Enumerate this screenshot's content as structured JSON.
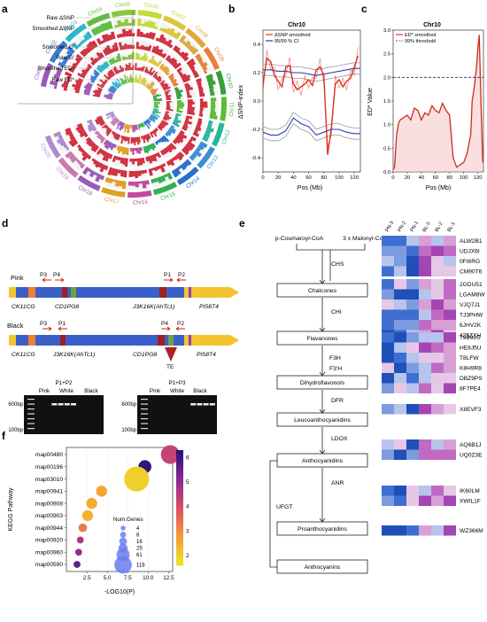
{
  "panel_letters": {
    "a": "a",
    "b": "b",
    "c": "c",
    "d": "d",
    "e": "e",
    "f": "f"
  },
  "panel_a": {
    "track_labels": [
      "Raw ΔSNP",
      "Smoothed ΔSNP",
      "Smoothed G'",
      "Raw G'",
      "Smoothed ED*",
      "Raw ED*"
    ],
    "chromosomes": [
      "Chr01",
      "Chr02",
      "Chr03",
      "Chr04",
      "Chr05",
      "Chr06",
      "Chr07",
      "Chr08",
      "Chr09",
      "Chr10",
      "Chr11",
      "Chr12",
      "Chr13",
      "Chr14",
      "Chr15",
      "Chr16",
      "Chr17",
      "Chr18",
      "Chr19",
      "Chr20"
    ],
    "chr_colors": [
      "#9b59b6",
      "#3a7bd5",
      "#2ab7ca",
      "#5fbf3f",
      "#8cc63f",
      "#c5d93a",
      "#d9c83a",
      "#e0a83a",
      "#e8803a",
      "#37a03a",
      "#5dbb3a",
      "#2bb5a0",
      "#3a8fd5",
      "#2a6fc8",
      "#33b050",
      "#c04a9a",
      "#e0a020",
      "#9a5ab6",
      "#c87ab0",
      "#b08ad0"
    ]
  },
  "panel_b": {
    "chart_data": {
      "type": "line",
      "title": "Chr10",
      "xlabel": "Pos (Mb)",
      "ylabel": "ΔSNP-index",
      "xlim": [
        0,
        128
      ],
      "ylim": [
        -0.5,
        0.5
      ],
      "xticks": [
        "0",
        "20",
        "40",
        "60",
        "80",
        "100",
        "120"
      ],
      "yticks": [
        "-0.4",
        "-0.2",
        "0.0",
        "0.2",
        "0.4"
      ],
      "legend": [
        "ΔSNP smoothed",
        "95/99 % CI"
      ],
      "series": [
        {
          "name": "ΔSNP smoothed",
          "x": [
            0,
            5,
            10,
            15,
            20,
            25,
            30,
            35,
            40,
            45,
            50,
            55,
            60,
            65,
            70,
            75,
            80,
            85,
            90,
            95,
            100,
            105,
            110,
            115,
            120,
            125
          ],
          "values": [
            0.12,
            0.3,
            0.28,
            0.18,
            0.14,
            0.1,
            0.24,
            0.25,
            0.12,
            0.08,
            0.1,
            0.12,
            0.15,
            0.11,
            0.22,
            0.24,
            0.18,
            -0.38,
            -0.18,
            0.12,
            0.15,
            0.1,
            0.14,
            0.16,
            0.24,
            0.32
          ]
        },
        {
          "name": "95/99 % CI",
          "x": [
            0,
            10,
            20,
            30,
            40,
            50,
            60,
            70,
            80,
            90,
            100,
            110,
            120,
            128
          ],
          "values": [
            0.22,
            0.22,
            0.21,
            0.21,
            0.2,
            0.2,
            0.19,
            0.18,
            0.19,
            0.2,
            0.21,
            0.22,
            0.23,
            0.23
          ]
        },
        {
          "name": "95/99 % CI lower",
          "x": [
            0,
            10,
            20,
            30,
            40,
            50,
            60,
            70,
            80,
            90,
            100,
            110,
            120,
            128
          ],
          "values": [
            -0.22,
            -0.24,
            -0.24,
            -0.21,
            -0.12,
            -0.16,
            -0.18,
            -0.24,
            -0.22,
            -0.2,
            -0.2,
            -0.22,
            -0.23,
            -0.23
          ]
        }
      ]
    }
  },
  "panel_c": {
    "chart_data": {
      "type": "line",
      "title": "Chr10",
      "xlabel": "Pos (Mb)",
      "ylabel": "ED* Value",
      "xlim": [
        0,
        128
      ],
      "ylim": [
        0,
        3
      ],
      "xticks": [
        "0",
        "20",
        "40",
        "60",
        "80",
        "100",
        "120"
      ],
      "yticks": [
        "0.0",
        "0.5",
        "1.0",
        "1.5",
        "2.0",
        "2.5",
        "3.0"
      ],
      "legend": [
        "ED* smoothed",
        "99% threshold"
      ],
      "threshold": 2.0,
      "series": [
        {
          "name": "ED* smoothed",
          "x": [
            0,
            2,
            5,
            8,
            10,
            15,
            20,
            25,
            30,
            35,
            40,
            45,
            50,
            55,
            60,
            65,
            70,
            75,
            80,
            85,
            90,
            95,
            100,
            105,
            110,
            112,
            115,
            118,
            120,
            122,
            125,
            127
          ],
          "values": [
            0.05,
            0.1,
            0.8,
            1.05,
            1.1,
            1.15,
            1.2,
            1.1,
            1.35,
            1.3,
            1.1,
            1.25,
            1.2,
            1.4,
            1.3,
            1.25,
            1.45,
            1.3,
            1.2,
            0.3,
            0.1,
            0.15,
            0.2,
            0.4,
            0.8,
            1.5,
            1.8,
            2.2,
            2.6,
            2.9,
            1.2,
            0.2
          ]
        }
      ]
    }
  },
  "panel_d": {
    "pink_label": "Pink",
    "black_label": "Black",
    "pink_genes": [
      "CK11CG",
      "CD1PG8",
      "J3K16K(AhTc1)",
      "PI58T4"
    ],
    "black_genes": [
      "CK11CG",
      "J3K16K(AhTc1)",
      "CD1PG8",
      "PI58T4"
    ],
    "pink_primers": [
      "P3",
      "P4",
      "P1",
      "P2"
    ],
    "black_primers": [
      "P3",
      "P1",
      "P4",
      "P2"
    ],
    "te_label": "TE",
    "gel1_title": "P1+P2",
    "gel2_title": "P1+P3",
    "gel_lanes": [
      "Pink",
      "White",
      "Black"
    ],
    "ladder_labels": [
      "600bp",
      "100bp"
    ]
  },
  "panel_e": {
    "pathway": [
      "p-Coumaroyl-CoA",
      "3 x Malonyl-CoA",
      "Chalcones",
      "Flavanones",
      "Dihydroflavonols",
      "Leucoanthocyanidins",
      "Anthocyanidins",
      "Proanthocyanidins",
      "Anthocyanins"
    ],
    "enzymes": [
      "CHS",
      "CHI",
      "F3H",
      "F3'H",
      "DFR",
      "LDOX",
      "ANR",
      "UFGT"
    ],
    "heatmap_columns": [
      "PN-3",
      "PN-2",
      "PN-1",
      "BL-3",
      "BL-2",
      "BL-1"
    ],
    "heatmap_groups": [
      {
        "genes": [
          "ALW2B1",
          "UDJX6I",
          "0FI6RG",
          "CM90T6"
        ]
      },
      {
        "genes": [
          "2GDU51",
          "LGAM8W",
          "VJQ7J1",
          "TJ3PHW",
          "6JHV2K",
          "425ZXH"
        ]
      },
      {
        "genes": [
          "79B99S",
          "HE8J5U",
          "T8LFW",
          "K8H9R8",
          "DBZ9PS",
          "8F7PE4"
        ]
      },
      {
        "genes": [
          "X8EVF3"
        ]
      },
      {
        "genes": [
          "AQ6B1J",
          "UQ0Z3E"
        ]
      },
      {
        "genes": [
          "IK60LM",
          "XWIL1F"
        ]
      },
      {
        "genes": [
          "WZ366M"
        ]
      }
    ]
  },
  "panel_f": {
    "chart_data": {
      "type": "scatter",
      "xlabel": "-LOG10(P)",
      "ylabel": "KEGG Pathway",
      "xlim": [
        0,
        13
      ],
      "xticks": [
        "2.5",
        "5.0",
        "7.5",
        "10.0",
        "12.5"
      ],
      "categories": [
        "map00480",
        "map00196",
        "map03010",
        "map00941",
        "map00908",
        "map00903",
        "map00944",
        "map00920",
        "map00960",
        "map00590"
      ],
      "x": [
        12.7,
        9.6,
        8.6,
        4.3,
        3.1,
        2.6,
        2.0,
        1.7,
        1.5,
        1.3
      ],
      "size": [
        61,
        25,
        118,
        16,
        16,
        16,
        8,
        4,
        4,
        4
      ],
      "color": [
        4.3,
        6.2,
        2.0,
        2.7,
        2.6,
        2.5,
        3.3,
        4.6,
        5.0,
        5.6
      ],
      "size_legend_title": "Num.Genes",
      "size_legend": [
        "4",
        "8",
        "16",
        "25",
        "61",
        "118"
      ],
      "colorbar_ticks": [
        "6",
        "5",
        "4",
        "3",
        "2"
      ],
      "colorbar_range": [
        1.6,
        6.3
      ]
    }
  }
}
